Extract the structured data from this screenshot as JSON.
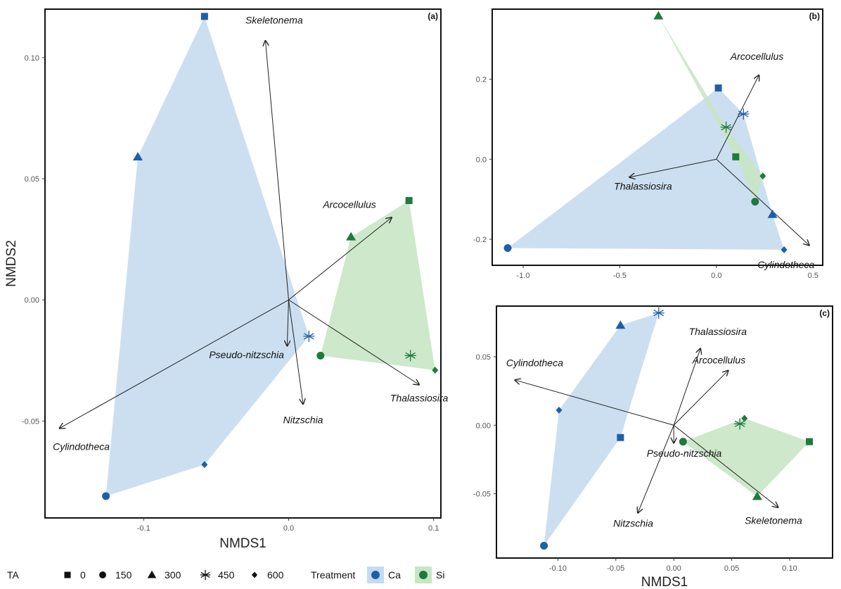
{
  "colors": {
    "Ca": "#1f5fa8",
    "Si": "#1f7a3e",
    "Ca_fill": "#c5dbf0",
    "Si_fill": "#c8e6c4",
    "arrow": "#222222"
  },
  "chart_data": [
    {
      "type": "scatter",
      "panel": "(a)",
      "xlabel": "NMDS1",
      "ylabel": "NMDS2",
      "xlim": [
        -0.168,
        0.105
      ],
      "ylim": [
        -0.09,
        0.12
      ],
      "xticks": [
        -0.1,
        0.0,
        0.1
      ],
      "xticklabels": [
        "-0.1",
        "0.0",
        "0.1"
      ],
      "yticks": [
        -0.05,
        0.0,
        0.05,
        0.1
      ],
      "yticklabels": [
        "-0.05",
        "0.00",
        "0.05",
        "0.10"
      ],
      "points": [
        {
          "treatment": "Ca",
          "ta": 0,
          "x": -0.058,
          "y": 0.117
        },
        {
          "treatment": "Ca",
          "ta": 150,
          "x": -0.126,
          "y": -0.081
        },
        {
          "treatment": "Ca",
          "ta": 300,
          "x": -0.104,
          "y": 0.059
        },
        {
          "treatment": "Ca",
          "ta": 450,
          "x": 0.014,
          "y": -0.015
        },
        {
          "treatment": "Ca",
          "ta": 600,
          "x": -0.058,
          "y": -0.068
        },
        {
          "treatment": "Si",
          "ta": 0,
          "x": 0.083,
          "y": 0.041
        },
        {
          "treatment": "Si",
          "ta": 150,
          "x": 0.022,
          "y": -0.023
        },
        {
          "treatment": "Si",
          "ta": 300,
          "x": 0.043,
          "y": 0.026
        },
        {
          "treatment": "Si",
          "ta": 450,
          "x": 0.084,
          "y": -0.023
        },
        {
          "treatment": "Si",
          "ta": 600,
          "x": 0.101,
          "y": -0.029
        }
      ],
      "hulls": {
        "Ca": [
          [
            -0.058,
            0.117
          ],
          [
            -0.104,
            0.059
          ],
          [
            -0.126,
            -0.081
          ],
          [
            -0.058,
            -0.068
          ],
          [
            0.014,
            -0.015
          ]
        ],
        "Si": [
          [
            0.083,
            0.041
          ],
          [
            0.101,
            -0.029
          ],
          [
            0.022,
            -0.023
          ],
          [
            0.043,
            0.026
          ]
        ]
      },
      "vectors": [
        {
          "label": "Skeletonema",
          "x": -0.016,
          "y": 0.107,
          "lx": -0.01,
          "ly": 0.114,
          "anchor": "middle"
        },
        {
          "label": "Arcocellulus",
          "x": 0.071,
          "y": 0.034,
          "lx": 0.042,
          "ly": 0.038,
          "anchor": "middle"
        },
        {
          "label": "Pseudo-nitzschia",
          "x": -0.001,
          "y": -0.019,
          "lx": -0.029,
          "ly": -0.024,
          "anchor": "middle"
        },
        {
          "label": "Nitzschia",
          "x": 0.01,
          "y": -0.043,
          "lx": 0.01,
          "ly": -0.051,
          "anchor": "middle"
        },
        {
          "label": "Thalassiosira",
          "x": 0.09,
          "y": -0.035,
          "lx": 0.09,
          "ly": -0.042,
          "anchor": "middle"
        },
        {
          "label": "Cylindotheca",
          "x": -0.158,
          "y": -0.053,
          "lx": -0.143,
          "ly": -0.062,
          "anchor": "middle"
        }
      ]
    },
    {
      "type": "scatter",
      "panel": "(b)",
      "xlabel": "",
      "ylabel": "",
      "xlim": [
        -1.16,
        0.55
      ],
      "ylim": [
        -0.265,
        0.375
      ],
      "xticks": [
        -1.0,
        -0.5,
        0.0,
        0.5
      ],
      "xticklabels": [
        "-1.0",
        "-0.5",
        "0.0",
        "0.5"
      ],
      "yticks": [
        -0.2,
        0.0,
        0.2
      ],
      "yticklabels": [
        "-0.2",
        "0.0",
        "0.2"
      ],
      "points": [
        {
          "treatment": "Ca",
          "ta": 0,
          "x": 0.01,
          "y": 0.178
        },
        {
          "treatment": "Ca",
          "ta": 150,
          "x": -1.08,
          "y": -0.222
        },
        {
          "treatment": "Ca",
          "ta": 300,
          "x": 0.29,
          "y": -0.138
        },
        {
          "treatment": "Ca",
          "ta": 450,
          "x": 0.14,
          "y": 0.113
        },
        {
          "treatment": "Ca",
          "ta": 600,
          "x": 0.35,
          "y": -0.226
        },
        {
          "treatment": "Si",
          "ta": 0,
          "x": 0.1,
          "y": 0.006
        },
        {
          "treatment": "Si",
          "ta": 150,
          "x": 0.2,
          "y": -0.106
        },
        {
          "treatment": "Si",
          "ta": 300,
          "x": -0.3,
          "y": 0.358
        },
        {
          "treatment": "Si",
          "ta": 450,
          "x": 0.05,
          "y": 0.08
        },
        {
          "treatment": "Si",
          "ta": 600,
          "x": 0.24,
          "y": -0.042
        }
      ],
      "hulls": {
        "Ca": [
          [
            -1.08,
            -0.222
          ],
          [
            0.01,
            0.178
          ],
          [
            0.14,
            0.113
          ],
          [
            0.29,
            -0.138
          ],
          [
            0.35,
            -0.226
          ]
        ],
        "Si": [
          [
            -0.3,
            0.358
          ],
          [
            0.05,
            0.08
          ],
          [
            0.24,
            -0.042
          ],
          [
            0.2,
            -0.106
          ],
          [
            0.1,
            0.006
          ]
        ]
      },
      "vectors": [
        {
          "label": "Arcocellulus",
          "x": 0.22,
          "y": 0.21,
          "lx": 0.21,
          "ly": 0.248,
          "anchor": "middle"
        },
        {
          "label": "Thalassiosira",
          "x": -0.45,
          "y": -0.045,
          "lx": -0.38,
          "ly": -0.076,
          "anchor": "middle"
        },
        {
          "label": "Cylindotheca",
          "x": 0.48,
          "y": -0.215,
          "lx": 0.36,
          "ly": -0.272,
          "anchor": "middle"
        }
      ]
    },
    {
      "type": "scatter",
      "panel": "(c)",
      "xlabel": "NMDS1",
      "ylabel": "",
      "xlim": [
        -0.153,
        0.137
      ],
      "ylim": [
        -0.097,
        0.087
      ],
      "xticks": [
        -0.1,
        -0.05,
        0.0,
        0.05,
        0.1
      ],
      "xticklabels": [
        "-0.10",
        "-0.05",
        "0.00",
        "0.05",
        "0.10"
      ],
      "yticks": [
        -0.05,
        0.0,
        0.05
      ],
      "yticklabels": [
        "-0.05",
        "0.00",
        "0.05"
      ],
      "points": [
        {
          "treatment": "Ca",
          "ta": 0,
          "x": -0.046,
          "y": -0.009
        },
        {
          "treatment": "Ca",
          "ta": 150,
          "x": -0.112,
          "y": -0.088
        },
        {
          "treatment": "Ca",
          "ta": 300,
          "x": -0.046,
          "y": 0.073
        },
        {
          "treatment": "Ca",
          "ta": 450,
          "x": -0.013,
          "y": 0.082
        },
        {
          "treatment": "Ca",
          "ta": 600,
          "x": -0.099,
          "y": 0.011
        },
        {
          "treatment": "Si",
          "ta": 0,
          "x": 0.117,
          "y": -0.012
        },
        {
          "treatment": "Si",
          "ta": 150,
          "x": 0.008,
          "y": -0.012
        },
        {
          "treatment": "Si",
          "ta": 300,
          "x": 0.072,
          "y": -0.052
        },
        {
          "treatment": "Si",
          "ta": 450,
          "x": 0.057,
          "y": 0.001
        },
        {
          "treatment": "Si",
          "ta": 600,
          "x": 0.061,
          "y": 0.005
        }
      ],
      "hulls": {
        "Ca": [
          [
            -0.112,
            -0.088
          ],
          [
            -0.099,
            0.011
          ],
          [
            -0.046,
            0.073
          ],
          [
            -0.013,
            0.082
          ],
          [
            -0.046,
            -0.009
          ]
        ],
        "Si": [
          [
            0.008,
            -0.012
          ],
          [
            0.061,
            0.005
          ],
          [
            0.117,
            -0.012
          ],
          [
            0.072,
            -0.052
          ]
        ]
      },
      "vectors": [
        {
          "label": "Thalassiosira",
          "x": 0.023,
          "y": 0.056,
          "lx": 0.038,
          "ly": 0.066,
          "anchor": "middle"
        },
        {
          "label": "Arcocellulus",
          "x": 0.047,
          "y": 0.04,
          "lx": 0.039,
          "ly": 0.045,
          "anchor": "middle"
        },
        {
          "label": "Cylindotheca",
          "x": -0.137,
          "y": 0.033,
          "lx": -0.12,
          "ly": 0.043,
          "anchor": "middle"
        },
        {
          "label": "Pseudo-nitzschia",
          "x": 0.0,
          "y": -0.013,
          "lx": 0.009,
          "ly": -0.023,
          "anchor": "middle"
        },
        {
          "label": "Nitzschia",
          "x": -0.031,
          "y": -0.064,
          "lx": -0.035,
          "ly": -0.074,
          "anchor": "middle"
        },
        {
          "label": "Skeletonema",
          "x": 0.09,
          "y": -0.06,
          "lx": 0.086,
          "ly": -0.072,
          "anchor": "middle"
        }
      ]
    }
  ],
  "legend": {
    "ta_title": "TA",
    "ta_items": [
      {
        "label": "0",
        "shape": "square"
      },
      {
        "label": "150",
        "shape": "circle"
      },
      {
        "label": "300",
        "shape": "triangle"
      },
      {
        "label": "450",
        "shape": "asterisk"
      },
      {
        "label": "600",
        "shape": "diamond"
      }
    ],
    "treatment_title": "Treatment",
    "treatment_items": [
      {
        "label": "Ca",
        "color": "#1f5fa8",
        "fill": "#c5dbf0"
      },
      {
        "label": "Si",
        "color": "#1f7a3e",
        "fill": "#c8e6c4"
      }
    ]
  }
}
